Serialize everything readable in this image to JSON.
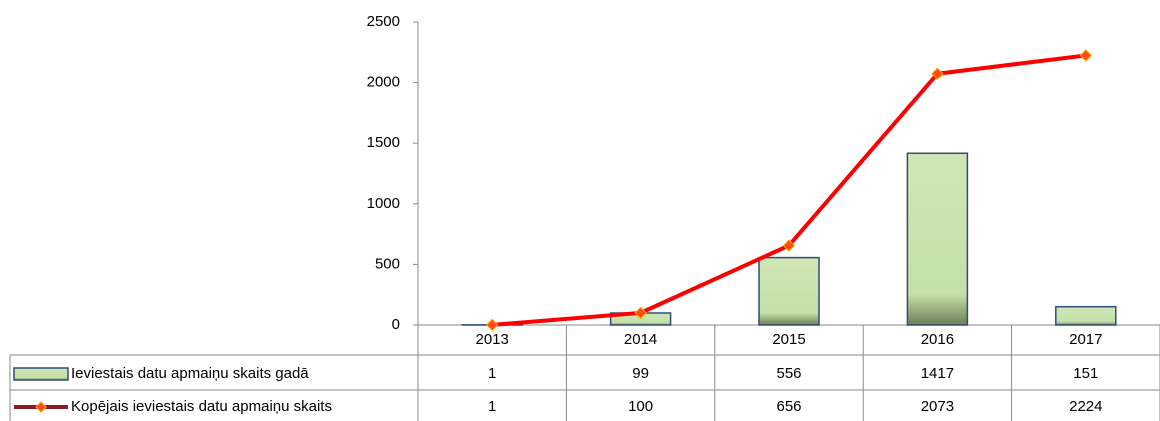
{
  "chart_data": {
    "type": "bar-line",
    "categories": [
      "2013",
      "2014",
      "2015",
      "2016",
      "2017"
    ],
    "series": [
      {
        "name": "Ieviestais datu apmaiņu skaits gadā",
        "type": "bar",
        "color": "#c4dfa8",
        "values": [
          1,
          99,
          556,
          1417,
          151
        ]
      },
      {
        "name": "Kopējais ieviestais datu apmaiņu skaits",
        "type": "line",
        "color": "#ff0000",
        "values": [
          1,
          100,
          656,
          2073,
          2224
        ]
      }
    ],
    "ylim": [
      0,
      2500
    ],
    "yticks": [
      0,
      500,
      1000,
      1500,
      2000,
      2500
    ],
    "grid": false
  }
}
